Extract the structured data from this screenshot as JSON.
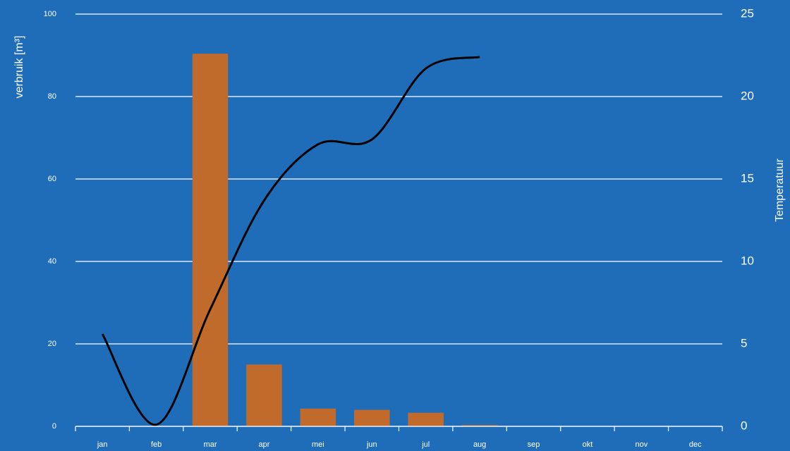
{
  "chart_data": {
    "type": "bar-line",
    "ylabel": "verbruik [m³]",
    "y2label": "Temperatuur",
    "categories": [
      "jan",
      "feb",
      "mar",
      "apr",
      "mei",
      "jun",
      "jul",
      "aug",
      "sep",
      "okt",
      "nov",
      "dec"
    ],
    "series": [
      {
        "type": "bar",
        "color": "#c06b2c",
        "values": [
          null,
          null,
          90.4,
          15.0,
          4.3,
          4.0,
          3.3,
          0.3,
          null,
          null,
          null,
          null
        ]
      },
      {
        "type": "line",
        "axis": "y2",
        "color": "#000000",
        "values": [
          5.6,
          0.1,
          7.1,
          13.7,
          17.1,
          17.4,
          21.7,
          22.4,
          null,
          null,
          null,
          null
        ]
      }
    ],
    "ylim": [
      0,
      100
    ],
    "yticks": [
      0,
      20,
      40,
      60,
      80,
      100
    ],
    "y2lim": [
      0,
      25
    ],
    "y2ticks": [
      0,
      5,
      10,
      15,
      20,
      25
    ],
    "grid": true
  }
}
